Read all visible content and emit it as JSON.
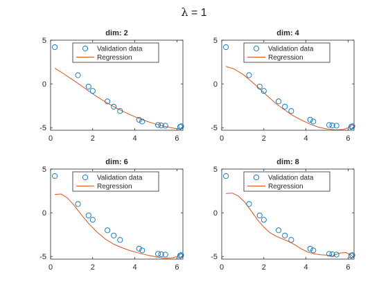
{
  "figure": {
    "suptitle_symbol": "λ",
    "suptitle_rest": " = 1"
  },
  "colors": {
    "validation": "#0072BD",
    "regression": "#D95319",
    "axis": "#262626"
  },
  "chart_data": [
    {
      "type": "scatter+line",
      "title": "dim: 2",
      "legend": [
        "Validation data",
        "Regression"
      ],
      "legend_position": "top-right",
      "xlim": [
        0,
        6.283
      ],
      "ylim": [
        -5.3,
        5
      ],
      "xticks": [
        0,
        2,
        4,
        6
      ],
      "yticks": [
        -5,
        0,
        5
      ],
      "validation": {
        "x": [
          0.2,
          1.3,
          1.8,
          2.0,
          2.7,
          3.0,
          3.3,
          4.2,
          4.35,
          5.1,
          5.25,
          5.45,
          6.15,
          6.2
        ],
        "y": [
          4.2,
          1.0,
          -0.3,
          -0.8,
          -2.0,
          -2.6,
          -3.1,
          -4.1,
          -4.3,
          -4.7,
          -4.75,
          -4.78,
          -4.9,
          -4.85
        ]
      },
      "regression": {
        "x": [
          0.2,
          0.6,
          1.0,
          1.4,
          1.8,
          2.2,
          2.6,
          3.0,
          3.4,
          3.8,
          4.2,
          4.6,
          5.0,
          5.4,
          5.8,
          6.2
        ],
        "y": [
          1.8,
          1.2,
          0.55,
          -0.1,
          -0.8,
          -1.45,
          -2.05,
          -2.6,
          -3.1,
          -3.55,
          -3.95,
          -4.3,
          -4.6,
          -4.85,
          -5.05,
          -5.2
        ]
      }
    },
    {
      "type": "scatter+line",
      "title": "dim: 4",
      "legend": [
        "Validation data",
        "Regression"
      ],
      "legend_position": "top-right",
      "xlim": [
        0,
        6.283
      ],
      "ylim": [
        -5.3,
        5
      ],
      "xticks": [
        0,
        2,
        4,
        6
      ],
      "yticks": [
        -5,
        0,
        5
      ],
      "validation": {
        "x": [
          0.2,
          1.3,
          1.8,
          2.0,
          2.7,
          3.0,
          3.3,
          4.2,
          4.35,
          5.1,
          5.25,
          5.45,
          6.15,
          6.2
        ],
        "y": [
          4.2,
          1.0,
          -0.3,
          -0.8,
          -2.0,
          -2.6,
          -3.1,
          -4.1,
          -4.3,
          -4.7,
          -4.75,
          -4.78,
          -4.9,
          -4.85
        ]
      },
      "regression": {
        "x": [
          0.2,
          0.6,
          1.0,
          1.4,
          1.8,
          2.2,
          2.6,
          3.0,
          3.4,
          3.8,
          4.2,
          4.6,
          5.0,
          5.4,
          5.8,
          6.0,
          6.2
        ],
        "y": [
          2.0,
          1.7,
          1.1,
          0.3,
          -0.55,
          -1.45,
          -2.3,
          -3.0,
          -3.65,
          -4.15,
          -4.6,
          -4.95,
          -5.15,
          -5.25,
          -5.2,
          -5.0,
          -4.7
        ]
      }
    },
    {
      "type": "scatter+line",
      "title": "dim: 6",
      "legend": [
        "Validation data",
        "Regression"
      ],
      "legend_position": "top-right",
      "xlim": [
        0,
        6.283
      ],
      "ylim": [
        -5.3,
        5
      ],
      "xticks": [
        0,
        2,
        4,
        6
      ],
      "yticks": [
        -5,
        0,
        5
      ],
      "validation": {
        "x": [
          0.2,
          1.3,
          1.8,
          2.0,
          2.7,
          3.0,
          3.3,
          4.2,
          4.35,
          5.1,
          5.25,
          5.45,
          6.15,
          6.2
        ],
        "y": [
          4.2,
          1.0,
          -0.3,
          -0.8,
          -2.0,
          -2.6,
          -3.1,
          -4.1,
          -4.3,
          -4.7,
          -4.75,
          -4.78,
          -4.9,
          -4.85
        ]
      },
      "regression": {
        "x": [
          0.2,
          0.5,
          0.8,
          1.1,
          1.4,
          1.8,
          2.2,
          2.6,
          3.0,
          3.4,
          3.8,
          4.2,
          4.6,
          5.0,
          5.4,
          5.8,
          6.0,
          6.2
        ],
        "y": [
          2.1,
          2.15,
          1.7,
          0.9,
          -0.05,
          -1.2,
          -2.2,
          -3.0,
          -3.6,
          -4.0,
          -4.35,
          -4.6,
          -4.85,
          -5.05,
          -5.2,
          -5.15,
          -5.0,
          -4.7
        ]
      }
    },
    {
      "type": "scatter+line",
      "title": "dim: 8",
      "legend": [
        "Validation data",
        "Regression"
      ],
      "legend_position": "top-right",
      "xlim": [
        0,
        6.283
      ],
      "ylim": [
        -5.3,
        5
      ],
      "xticks": [
        0,
        2,
        4,
        6
      ],
      "yticks": [
        -5,
        0,
        5
      ],
      "validation": {
        "x": [
          0.2,
          1.3,
          1.8,
          2.0,
          2.7,
          3.0,
          3.3,
          4.2,
          4.35,
          5.1,
          5.25,
          5.45,
          6.15,
          6.2
        ],
        "y": [
          4.2,
          1.0,
          -0.3,
          -0.8,
          -2.0,
          -2.6,
          -3.1,
          -4.1,
          -4.3,
          -4.7,
          -4.75,
          -4.78,
          -4.9,
          -4.85
        ]
      },
      "regression": {
        "x": [
          0.2,
          0.5,
          0.8,
          1.1,
          1.4,
          1.7,
          2.0,
          2.3,
          2.6,
          2.9,
          3.2,
          3.5,
          3.8,
          4.1,
          4.4,
          4.7,
          5.0,
          5.3,
          5.6,
          5.9,
          6.2
        ],
        "y": [
          2.2,
          2.25,
          1.9,
          1.2,
          0.2,
          -0.8,
          -1.65,
          -2.3,
          -2.7,
          -3.0,
          -3.3,
          -3.7,
          -4.15,
          -4.5,
          -4.7,
          -4.8,
          -4.85,
          -4.9,
          -4.6,
          -4.55,
          -4.9
        ]
      }
    }
  ]
}
